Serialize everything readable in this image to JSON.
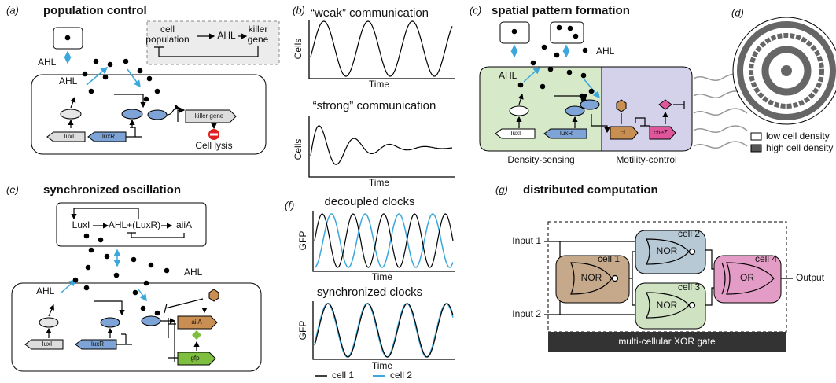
{
  "panel_a": {
    "label": "(a)",
    "title": "population control",
    "circuit": [
      "cell",
      "population",
      "AHL",
      "killer",
      "gene"
    ],
    "ahl_outside": "AHL",
    "ahl_inside": "AHL",
    "genes": [
      "luxI",
      "luxR",
      "killer  gene"
    ],
    "outcome": "Cell lysis"
  },
  "panel_b": {
    "label": "(b)",
    "top": {
      "title": "“weak” communication",
      "ylabel": "Cells",
      "xlabel": "Time"
    },
    "bottom": {
      "title": "“strong” communication",
      "ylabel": "Cells",
      "xlabel": "Time"
    }
  },
  "panel_c": {
    "label": "(c)",
    "title": "spatial pattern formation",
    "ahl_outside": "AHL",
    "ahl_inside": "AHL",
    "genes": [
      "luxI",
      "luxR",
      "cI",
      "cheZ"
    ],
    "region_labels": [
      "Density-sensing",
      "Motility-control"
    ]
  },
  "panel_d": {
    "label": "(d)",
    "legend": [
      "low cell density",
      "high cell density"
    ]
  },
  "panel_e": {
    "label": "(e)",
    "title": "synchronized oscillation",
    "circuit": [
      "LuxI",
      "AHL+(LuxR)",
      "aiiA"
    ],
    "ahl_outside": "AHL",
    "ahl_inside": "AHL",
    "genes": [
      "luxI",
      "luxR",
      "aiiA",
      "gfp"
    ]
  },
  "panel_f": {
    "label": "(f)",
    "top": {
      "title": "decoupled clocks",
      "ylabel": "GFP",
      "xlabel": "Time"
    },
    "bottom": {
      "title": "synchronized clocks",
      "ylabel": "GFP",
      "xlabel": "Time"
    },
    "legend": [
      "cell 1",
      "cell 2"
    ]
  },
  "panel_g": {
    "label": "(g)",
    "title": "distributed computation",
    "inputs": [
      "Input 1",
      "Input 2"
    ],
    "cells": [
      {
        "name": "cell 1",
        "gate": "NOR"
      },
      {
        "name": "cell 2",
        "gate": "NOR"
      },
      {
        "name": "cell 3",
        "gate": "NOR"
      },
      {
        "name": "cell 4",
        "gate": "OR"
      }
    ],
    "output": "Output",
    "footer": "multi-cellular XOR gate"
  }
}
